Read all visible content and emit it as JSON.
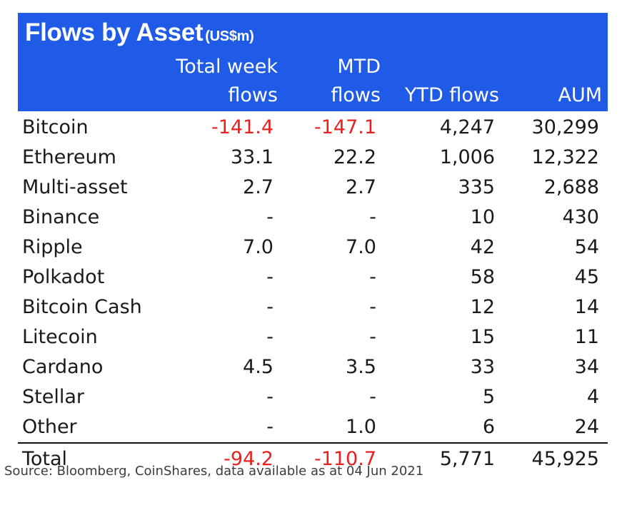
{
  "chart_data": {
    "type": "table",
    "title": "Flows by Asset",
    "unit": "(US$m)",
    "columns": [
      {
        "line1": "Total week",
        "line2": "flows"
      },
      {
        "line1": "MTD",
        "line2": "flows"
      },
      {
        "line1": "",
        "line2": "YTD flows"
      },
      {
        "line1": "",
        "line2": "AUM"
      }
    ],
    "rows": [
      {
        "asset": "Bitcoin",
        "week": "-141.4",
        "mtd": "-147.1",
        "ytd": "4,247",
        "aum": "30,299"
      },
      {
        "asset": "Ethereum",
        "week": "33.1",
        "mtd": "22.2",
        "ytd": "1,006",
        "aum": "12,322"
      },
      {
        "asset": "Multi-asset",
        "week": "2.7",
        "mtd": "2.7",
        "ytd": "335",
        "aum": "2,688"
      },
      {
        "asset": "Binance",
        "week": "-",
        "mtd": "-",
        "ytd": "10",
        "aum": "430"
      },
      {
        "asset": "Ripple",
        "week": "7.0",
        "mtd": "7.0",
        "ytd": "42",
        "aum": "54"
      },
      {
        "asset": "Polkadot",
        "week": "-",
        "mtd": "-",
        "ytd": "58",
        "aum": "45"
      },
      {
        "asset": "Bitcoin Cash",
        "week": "-",
        "mtd": "-",
        "ytd": "12",
        "aum": "14"
      },
      {
        "asset": "Litecoin",
        "week": "-",
        "mtd": "-",
        "ytd": "15",
        "aum": "11"
      },
      {
        "asset": "Cardano",
        "week": "4.5",
        "mtd": "3.5",
        "ytd": "33",
        "aum": "34"
      },
      {
        "asset": "Stellar",
        "week": "-",
        "mtd": "-",
        "ytd": "5",
        "aum": "4"
      },
      {
        "asset": "Other",
        "week": "-",
        "mtd": "1.0",
        "ytd": "6",
        "aum": "24"
      }
    ],
    "total": {
      "asset": "Total",
      "week": "-94.2",
      "mtd": "-110.7",
      "ytd": "5,771",
      "aum": "45,925"
    },
    "source": "Source: Bloomberg, CoinShares, data available as at 04 Jun 2021"
  },
  "colors": {
    "header_bg": "#1f5be6",
    "negative": "#e8201f"
  }
}
